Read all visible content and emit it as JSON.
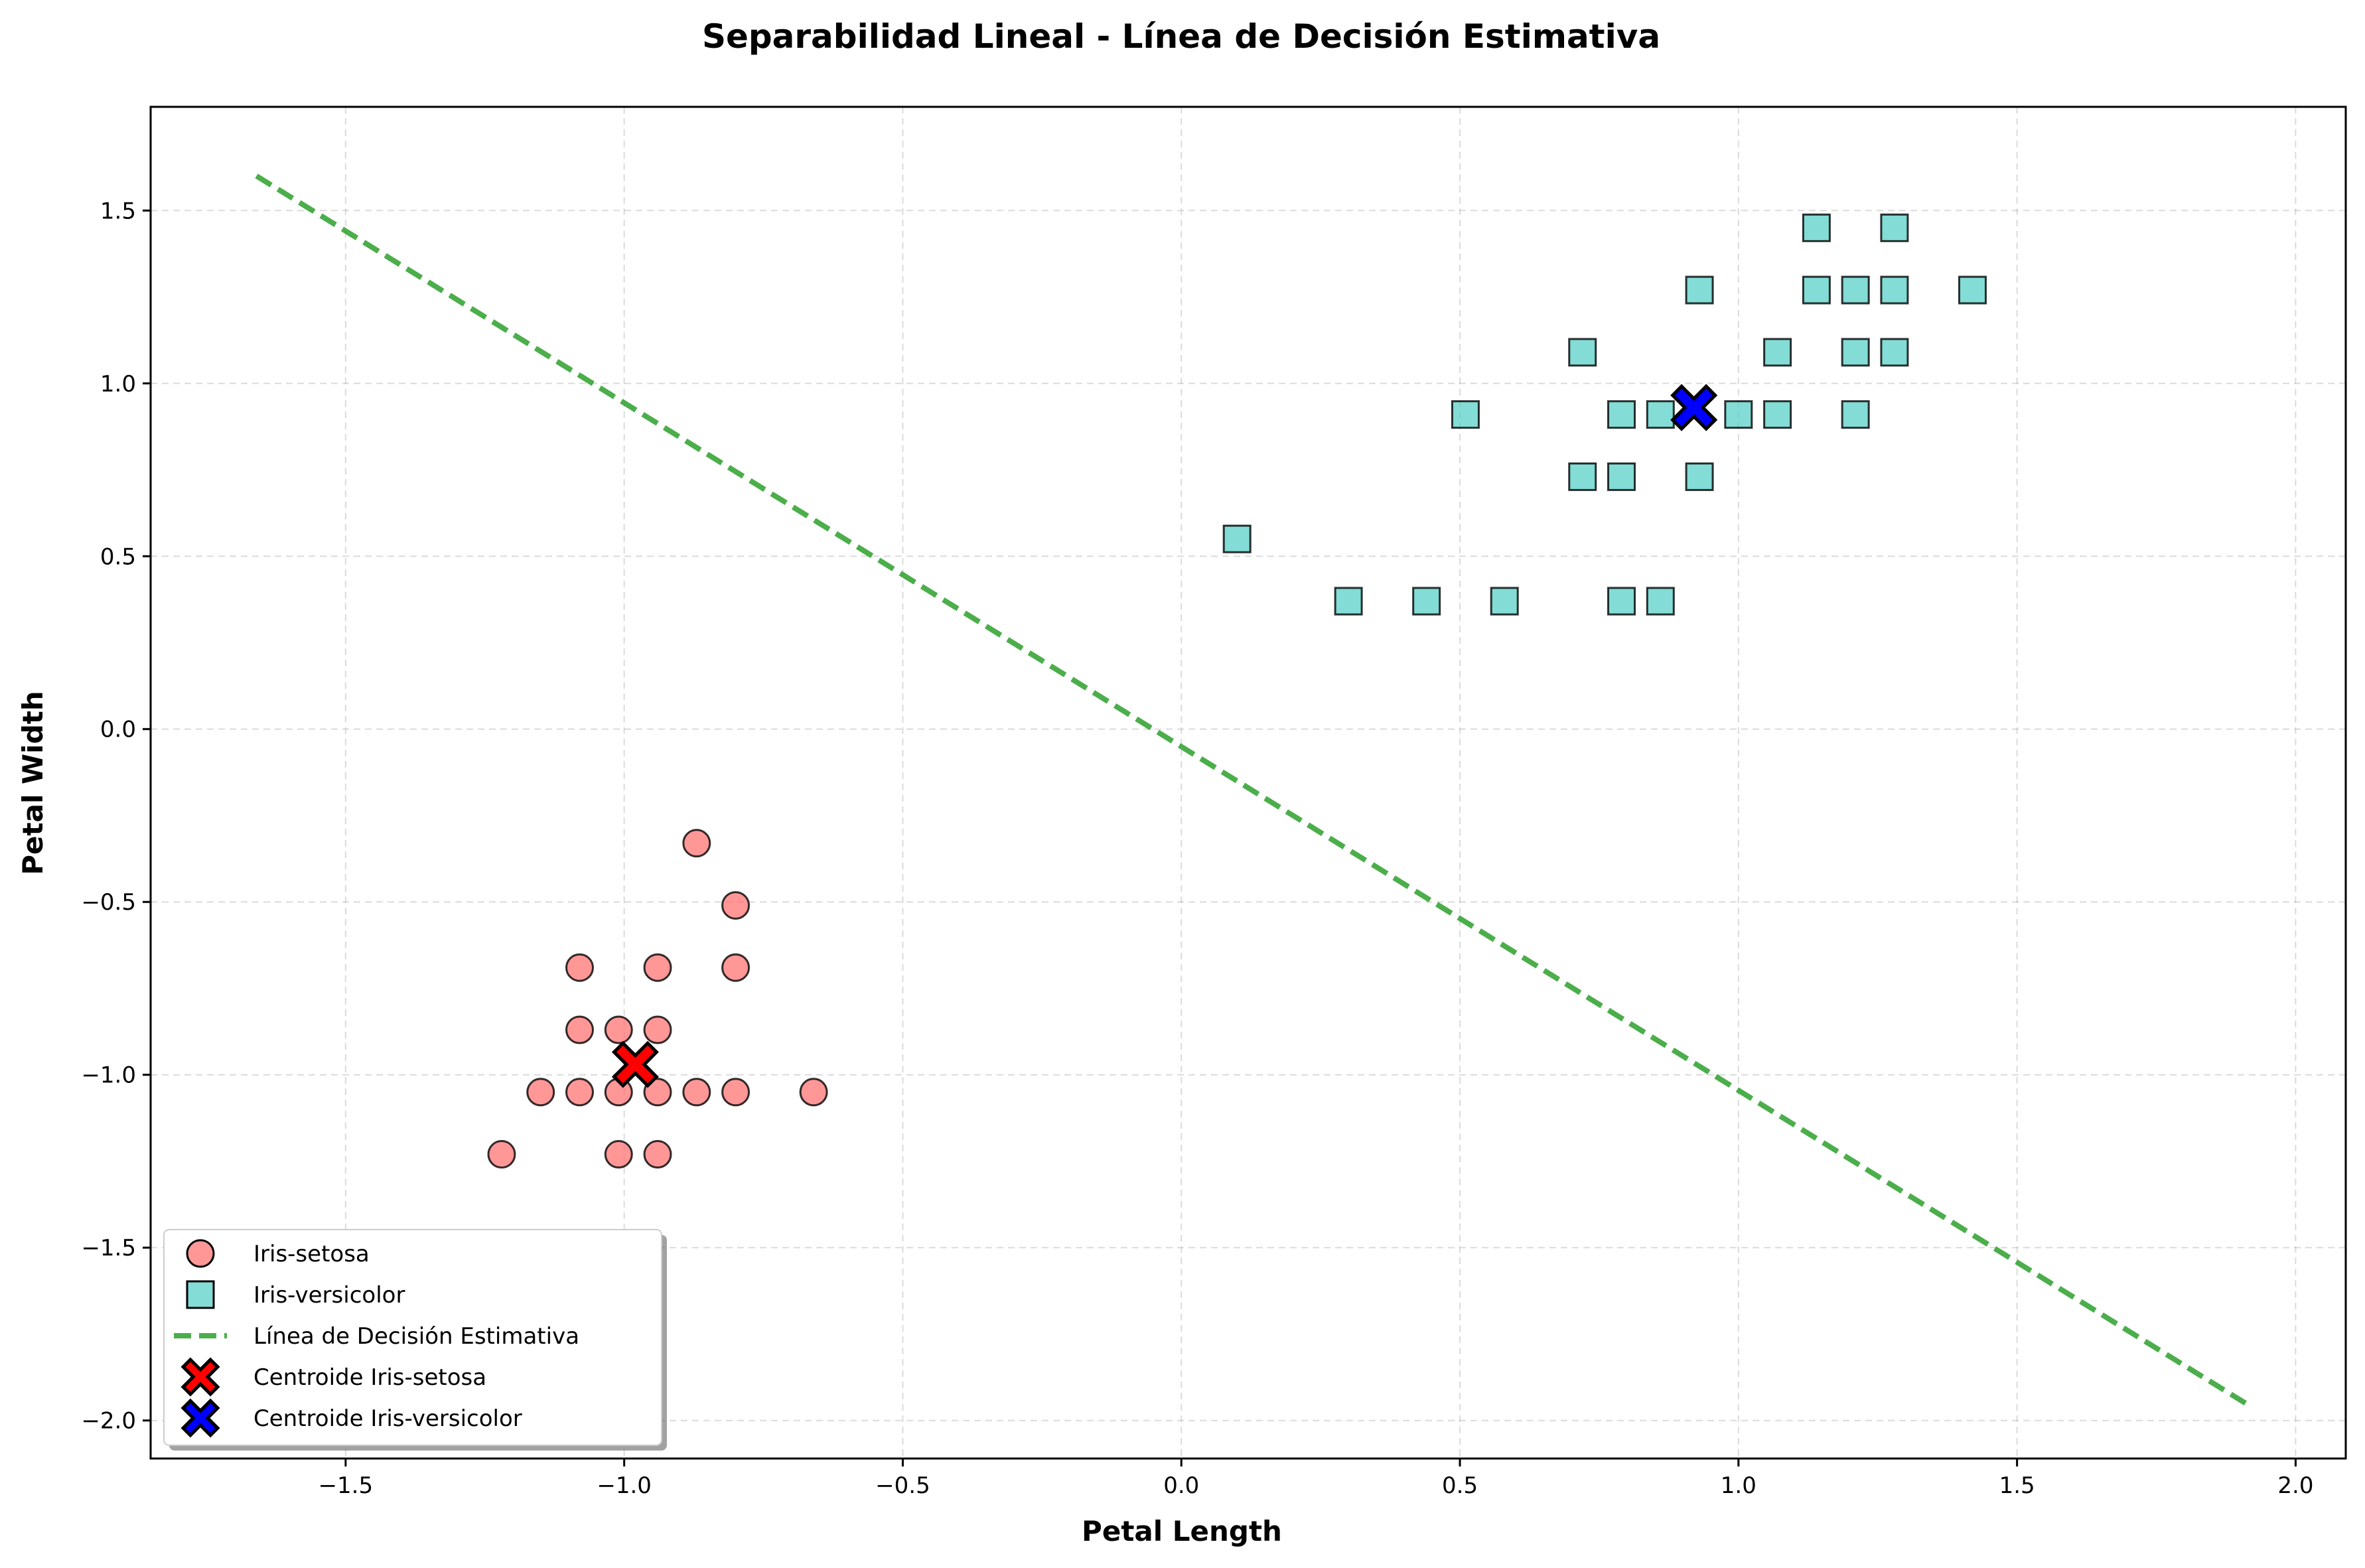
{
  "chart_data": {
    "type": "scatter",
    "title": "Separabilidad Lineal - Línea de Decisión Estimativa",
    "xlabel": "Petal Length",
    "ylabel": "Petal Width",
    "xlim": [
      -1.85,
      2.09
    ],
    "ylim": [
      -2.11,
      1.8
    ],
    "xticks": [
      -1.5,
      -1.0,
      -0.5,
      0.0,
      0.5,
      1.0,
      1.5,
      2.0
    ],
    "xtick_labels": [
      "−1.5",
      "−1.0",
      "−0.5",
      "0.0",
      "0.5",
      "1.0",
      "1.5",
      "2.0"
    ],
    "yticks": [
      -2.0,
      -1.5,
      -1.0,
      -0.5,
      0.0,
      0.5,
      1.0,
      1.5
    ],
    "ytick_labels": [
      "−2.0",
      "−1.5",
      "−1.0",
      "−0.5",
      "0.0",
      "0.5",
      "1.0",
      "1.5"
    ],
    "grid": true,
    "legend_position": "lower-left",
    "colors": {
      "setosa": "#ff6b6b",
      "versicolor": "#4ecdc4",
      "decision_line": "#2ca02c",
      "centroid_setosa": "#ff0000",
      "centroid_versicolor": "#0000ff"
    },
    "series": [
      {
        "name": "Iris-setosa",
        "marker": "circle",
        "points": [
          [
            -0.87,
            -0.33
          ],
          [
            -0.8,
            -0.51
          ],
          [
            -1.08,
            -0.69
          ],
          [
            -0.94,
            -0.69
          ],
          [
            -0.8,
            -0.69
          ],
          [
            -1.08,
            -0.87
          ],
          [
            -1.01,
            -0.87
          ],
          [
            -0.94,
            -0.87
          ],
          [
            -1.15,
            -1.05
          ],
          [
            -1.08,
            -1.05
          ],
          [
            -1.01,
            -1.05
          ],
          [
            -0.94,
            -1.05
          ],
          [
            -0.87,
            -1.05
          ],
          [
            -0.8,
            -1.05
          ],
          [
            -0.66,
            -1.05
          ],
          [
            -1.22,
            -1.23
          ],
          [
            -1.01,
            -1.23
          ],
          [
            -0.94,
            -1.23
          ]
        ]
      },
      {
        "name": "Iris-versicolor",
        "marker": "square",
        "points": [
          [
            1.14,
            1.45
          ],
          [
            1.28,
            1.45
          ],
          [
            0.93,
            1.27
          ],
          [
            1.14,
            1.27
          ],
          [
            1.21,
            1.27
          ],
          [
            1.28,
            1.27
          ],
          [
            1.42,
            1.27
          ],
          [
            0.72,
            1.09
          ],
          [
            1.07,
            1.09
          ],
          [
            1.21,
            1.09
          ],
          [
            1.28,
            1.09
          ],
          [
            0.51,
            0.91
          ],
          [
            0.79,
            0.91
          ],
          [
            0.86,
            0.91
          ],
          [
            1.0,
            0.91
          ],
          [
            1.07,
            0.91
          ],
          [
            1.21,
            0.91
          ],
          [
            0.72,
            0.73
          ],
          [
            0.79,
            0.73
          ],
          [
            0.93,
            0.73
          ],
          [
            0.1,
            0.55
          ],
          [
            0.3,
            0.37
          ],
          [
            0.44,
            0.37
          ],
          [
            0.58,
            0.37
          ],
          [
            0.79,
            0.37
          ],
          [
            0.86,
            0.37
          ]
        ]
      }
    ],
    "decision_line": {
      "name": "Línea de Decisión Estimativa",
      "style": "dashed",
      "points": [
        [
          -1.66,
          1.6
        ],
        [
          1.91,
          -1.95
        ]
      ]
    },
    "centroids": [
      {
        "name": "Centroide Iris-setosa",
        "x": -0.98,
        "y": -0.97
      },
      {
        "name": "Centroide Iris-versicolor",
        "x": 0.92,
        "y": 0.93
      }
    ],
    "legend": [
      "Iris-setosa",
      "Iris-versicolor",
      "Línea de Decisión Estimativa",
      "Centroide Iris-setosa",
      "Centroide Iris-versicolor"
    ]
  }
}
